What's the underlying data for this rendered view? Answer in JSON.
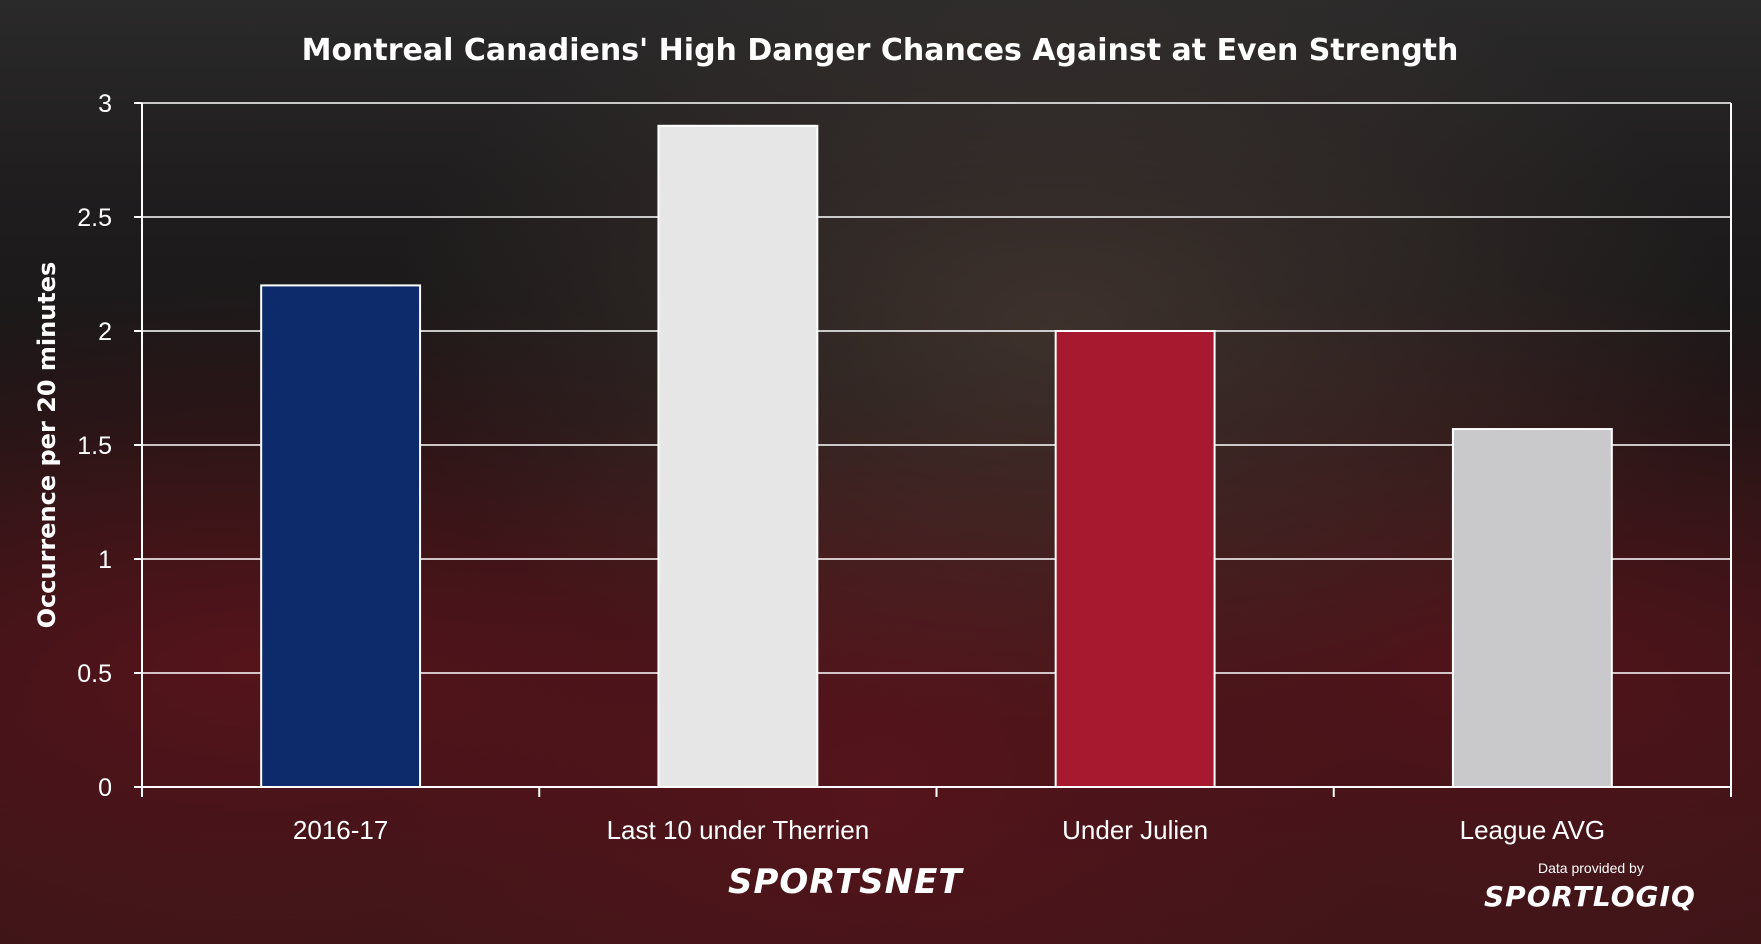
{
  "chart_data": {
    "type": "bar",
    "title": "Montreal Canadiens' High Danger Chances Against at Even Strength",
    "ylabel": "Occurrence per 20 minutes",
    "xlabel": "",
    "categories": [
      "2016-17",
      "Last 10 under Therrien",
      "Under Julien",
      "League AVG"
    ],
    "values": [
      2.2,
      2.9,
      2.0,
      1.57
    ],
    "bar_colors": [
      "#0d2a6b",
      "#e6e6e6",
      "#a6192e",
      "#c9c9cb"
    ],
    "ylim": [
      0,
      3
    ],
    "yticks": [
      "0",
      "0.5",
      "1",
      "1.5",
      "2",
      "2.5",
      "3"
    ],
    "grid": true,
    "legend": "none"
  },
  "branding": {
    "network_logo_text": "SPORTSNET",
    "provider_caption": "Data provided by",
    "provider_logo_text": "SPORTLOGIQ"
  }
}
